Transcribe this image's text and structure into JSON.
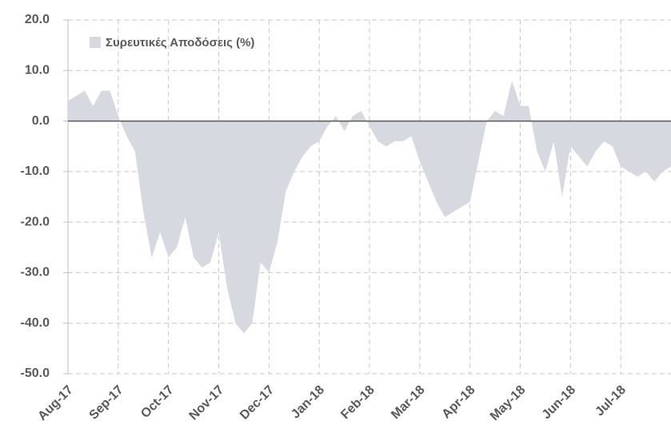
{
  "chart_data": {
    "type": "area",
    "legend": "upper left",
    "grid": true,
    "color": "#d6d9e0",
    "series": [
      {
        "name": "Συρευτικές Αποδόσεις (%)",
        "color": "#d6d9e0",
        "values": [
          4,
          5,
          6,
          3,
          6,
          6,
          1,
          -3,
          -6,
          -18,
          -27,
          -22,
          -27,
          -25,
          -19,
          -27,
          -29,
          -28,
          -22,
          -33,
          -40,
          -42,
          -40,
          -28,
          -30,
          -24,
          -14,
          -10,
          -7,
          -5,
          -4,
          -1,
          1,
          -2,
          1,
          2,
          -1,
          -4,
          -5,
          -4,
          -4,
          -3,
          -8,
          -12,
          -16,
          -19,
          -18,
          -17,
          -16,
          -8,
          0,
          2,
          1,
          8,
          3,
          3,
          -6,
          -10,
          -4,
          -15,
          -5,
          -7,
          -9,
          -6,
          -4,
          -5,
          -9,
          -10,
          -11,
          -10,
          -12,
          -10,
          -9
        ]
      }
    ],
    "categories": [
      "Aug-17",
      null,
      null,
      null,
      null,
      null,
      "Sep-17",
      null,
      null,
      null,
      null,
      null,
      "Oct-17",
      null,
      null,
      null,
      null,
      null,
      "Nov-17",
      null,
      null,
      null,
      null,
      null,
      "Dec-17",
      null,
      null,
      null,
      null,
      null,
      "Jan-18",
      null,
      null,
      null,
      null,
      null,
      "Feb-18",
      null,
      null,
      null,
      null,
      null,
      "Mar-18",
      null,
      null,
      null,
      null,
      null,
      "Apr-18",
      null,
      null,
      null,
      null,
      null,
      "May-18",
      null,
      null,
      null,
      null,
      null,
      "Jun-18",
      null,
      null,
      null,
      null,
      null,
      "Jul-18",
      null,
      null,
      null,
      null,
      null,
      null
    ],
    "ylim": [
      -50,
      20
    ],
    "yticks": [
      {
        "value": 20,
        "label": "20.0"
      },
      {
        "value": 10,
        "label": "10.0"
      },
      {
        "value": 0,
        "label": "0.0"
      },
      {
        "value": -10,
        "label": "-10.0"
      },
      {
        "value": -20,
        "label": "-20.0"
      },
      {
        "value": -30,
        "label": "-30.0"
      },
      {
        "value": -40,
        "label": "-40.0"
      },
      {
        "value": -50,
        "label": "-50.0"
      }
    ]
  }
}
